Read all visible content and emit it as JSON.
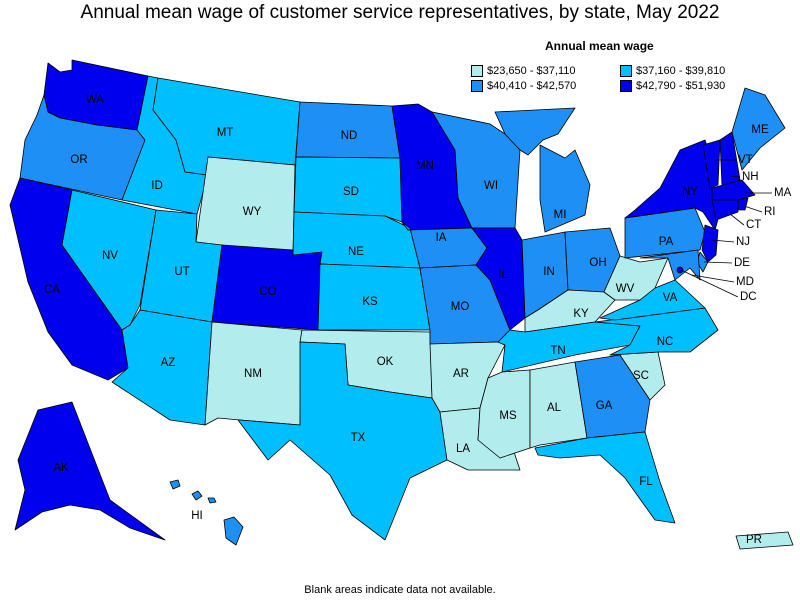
{
  "title": "Annual mean wage of customer service representatives, by state, May 2022",
  "legend": {
    "title": "Annual mean wage",
    "items": [
      {
        "label": "$23,650 - $37,110",
        "color": "#b3ecec"
      },
      {
        "label": "$37,160 - $39,810",
        "color": "#00bfff"
      },
      {
        "label": "$40,410 - $42,570",
        "color": "#1e8ff5"
      },
      {
        "label": "$42,790 - $51,930",
        "color": "#0000ee"
      }
    ]
  },
  "footnote": "Blank areas indicate data not available.",
  "states": {
    "WA": 3,
    "OR": 2,
    "CA": 3,
    "NV": 1,
    "ID": 1,
    "MT": 1,
    "WY": 0,
    "UT": 1,
    "AZ": 1,
    "CO": 3,
    "NM": 0,
    "ND": 2,
    "SD": 1,
    "NE": 1,
    "KS": 1,
    "OK": 0,
    "TX": 1,
    "MN": 3,
    "IA": 2,
    "MO": 2,
    "AR": 0,
    "LA": 0,
    "WI": 2,
    "IL": 3,
    "MI": 2,
    "IN": 2,
    "OH": 2,
    "KY": 0,
    "TN": 1,
    "MS": 0,
    "AL": 0,
    "GA": 2,
    "FL": 1,
    "SC": 0,
    "NC": 1,
    "VA": 1,
    "WV": 0,
    "PA": 2,
    "NY": 3,
    "VT": 3,
    "NH": 3,
    "ME": 2,
    "MA": 3,
    "RI": 3,
    "CT": 3,
    "NJ": 3,
    "DE": 2,
    "MD": 2,
    "DC": 3,
    "AK": 3,
    "HI": 2,
    "PR": 0
  }
}
